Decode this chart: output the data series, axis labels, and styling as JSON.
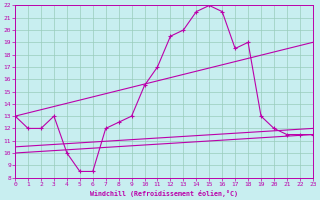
{
  "xlabel": "Windchill (Refroidissement éolien,°C)",
  "xlim": [
    0,
    23
  ],
  "ylim": [
    8,
    22
  ],
  "yticks": [
    8,
    9,
    10,
    11,
    12,
    13,
    14,
    15,
    16,
    17,
    18,
    19,
    20,
    21,
    22
  ],
  "xticks": [
    0,
    1,
    2,
    3,
    4,
    5,
    6,
    7,
    8,
    9,
    10,
    11,
    12,
    13,
    14,
    15,
    16,
    17,
    18,
    19,
    20,
    21,
    22,
    23
  ],
  "bg_color": "#c8eef0",
  "line_color": "#bb00aa",
  "grid_color": "#99ccbb",
  "curve1_x": [
    0,
    1,
    2,
    3,
    4,
    5,
    6,
    7,
    8,
    9,
    10,
    11,
    12,
    13,
    14,
    15,
    16,
    17,
    18,
    19,
    20,
    21,
    22,
    23
  ],
  "curve1_y": [
    13,
    12,
    12,
    13,
    10,
    8.5,
    8.5,
    12,
    12.5,
    13,
    15.5,
    17,
    19.5,
    20,
    21.5,
    22,
    21.5,
    18.5,
    19,
    13,
    12,
    11.5,
    11.5,
    11.5
  ],
  "curve2_x": [
    0,
    23
  ],
  "curve2_y": [
    10.5,
    12
  ],
  "curve3_x": [
    0,
    23
  ],
  "curve3_y": [
    13,
    19
  ],
  "curve4_x": [
    0,
    23
  ],
  "curve4_y": [
    10,
    11.5
  ]
}
